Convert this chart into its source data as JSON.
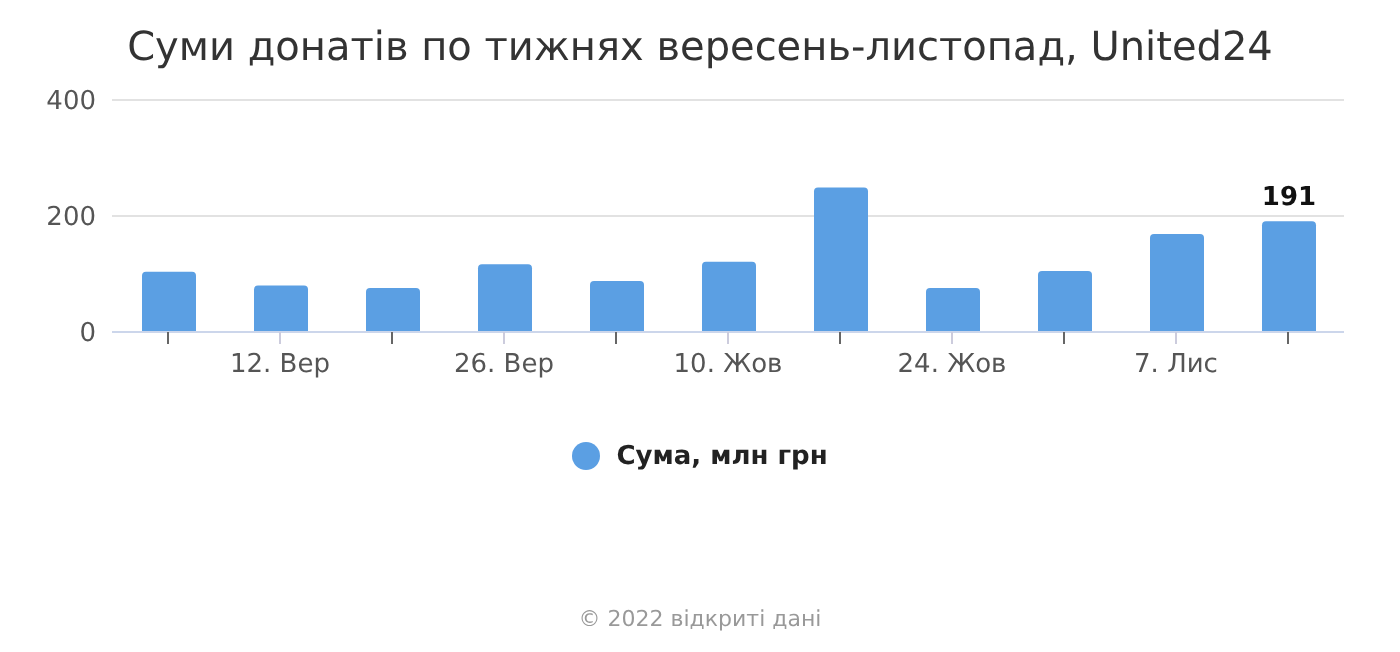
{
  "chart_data": {
    "type": "bar",
    "title": "Суми донатів по тижнях вересень-листопад, United24",
    "categories": [
      null,
      "12. Вер",
      null,
      "26. Вер",
      null,
      "10. Жов",
      null,
      "24. Жов",
      null,
      "7. Лис",
      null
    ],
    "series": [
      {
        "name": "Сума, млн грн",
        "color": "#5b9fe3",
        "values": [
          104,
          80,
          76,
          117,
          88,
          121,
          249,
          76,
          105,
          169,
          191
        ],
        "value_labels": [
          null,
          null,
          null,
          null,
          null,
          null,
          null,
          null,
          null,
          null,
          "191"
        ]
      }
    ],
    "ylim": [
      0,
      400
    ],
    "yticks": [
      0,
      200,
      400
    ],
    "grid": "y",
    "legend": "bottom",
    "annotations": [
      "© 2022 відкриті дані"
    ]
  }
}
